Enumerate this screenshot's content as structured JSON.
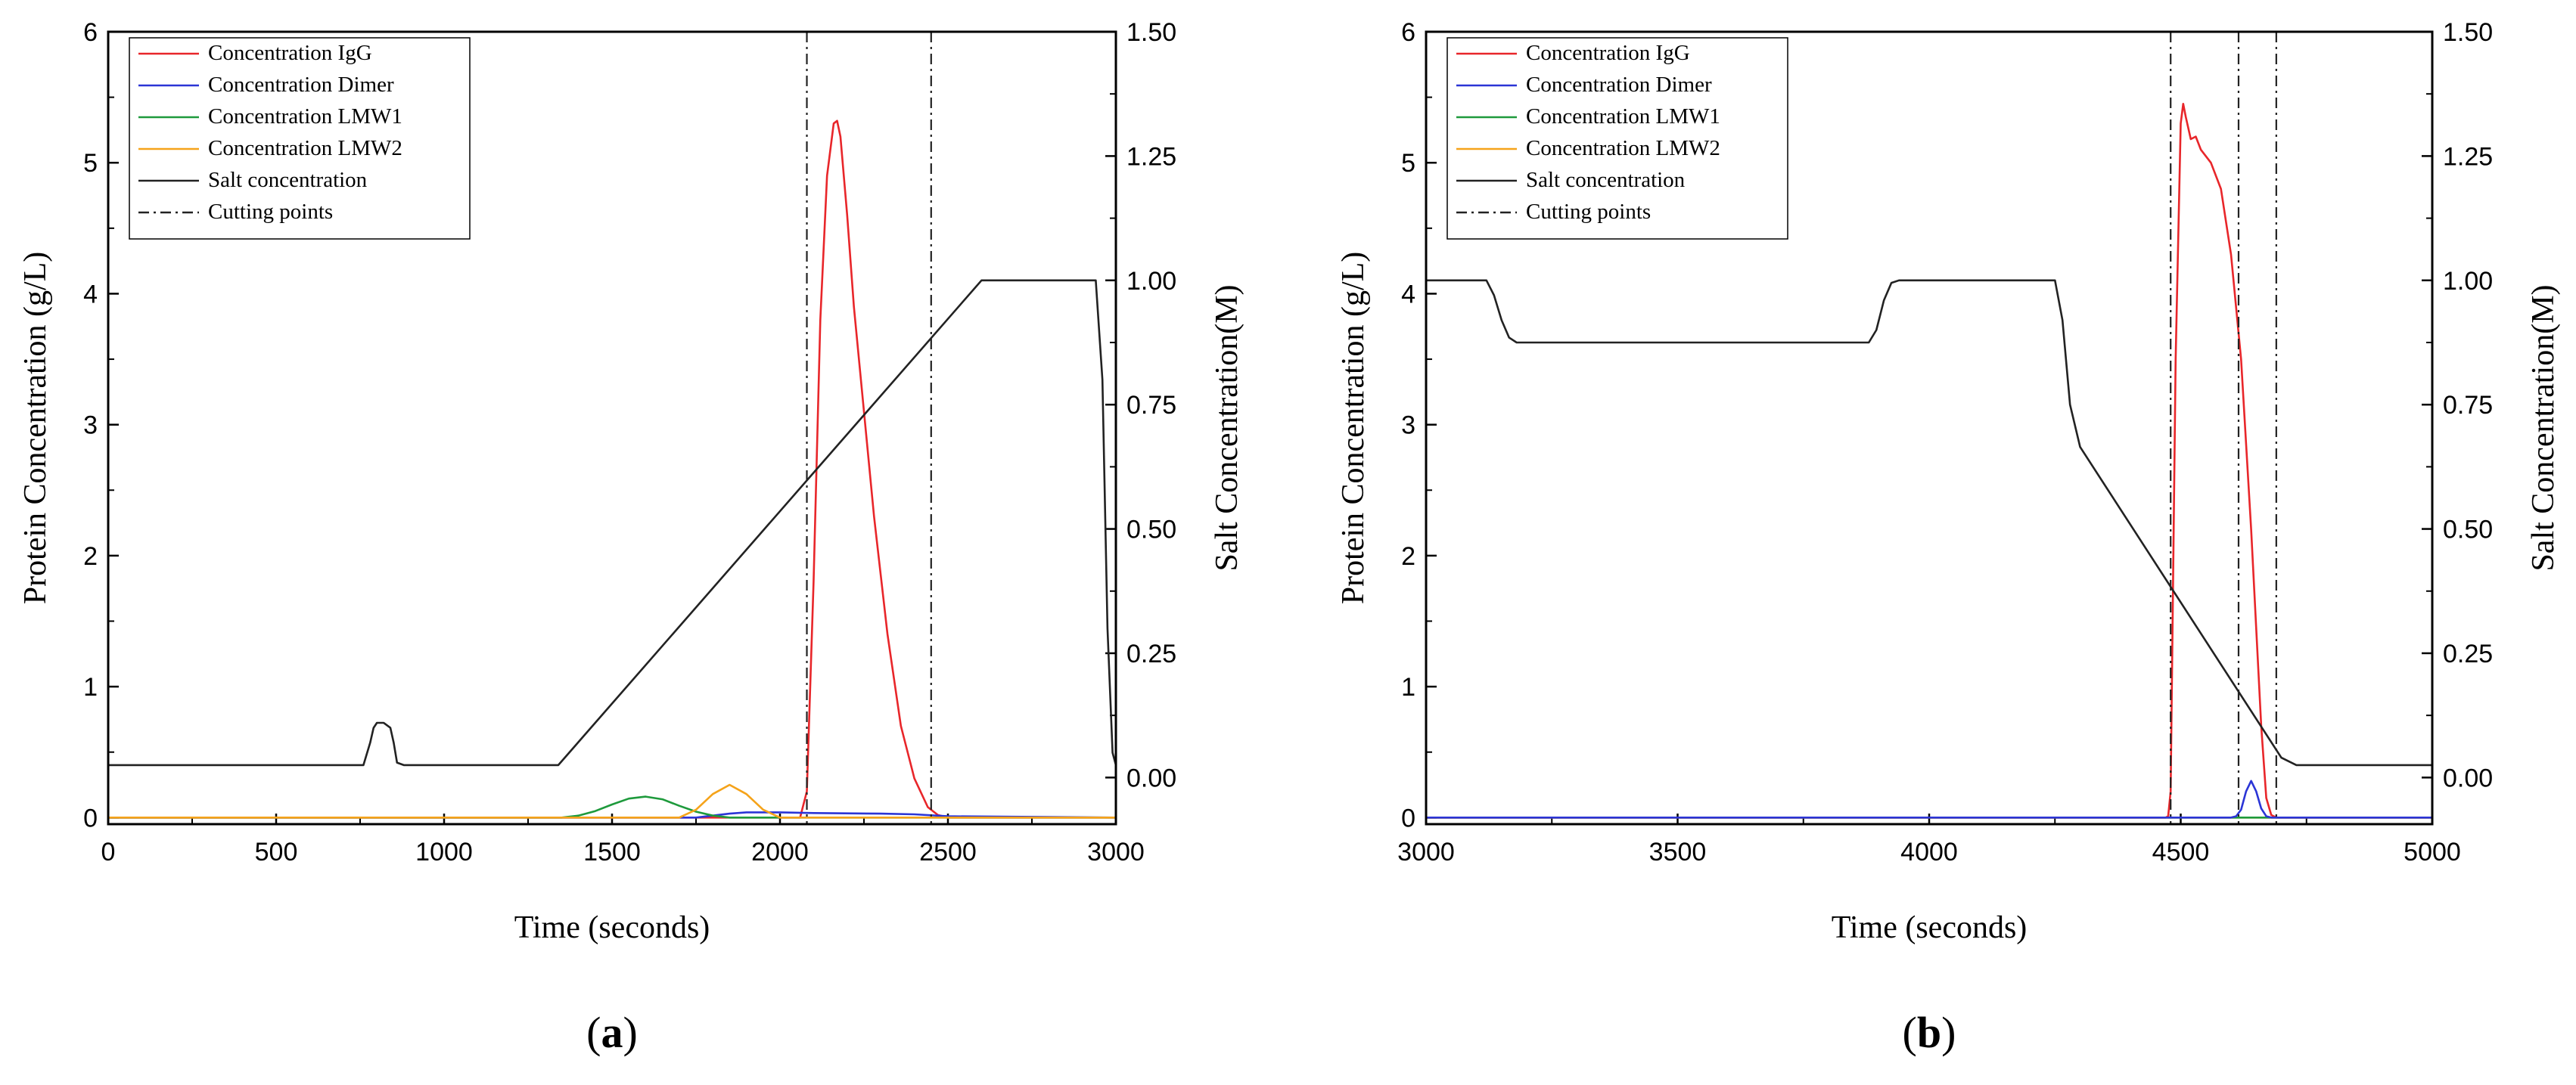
{
  "chart_data": [
    {
      "panel_label": "(a)",
      "type": "line",
      "xlabel": "Time (seconds)",
      "ylabel": "Protein Concentration (g/L)",
      "y2label": "Salt Concentration(M)",
      "xlim": [
        0,
        3000
      ],
      "ylim": [
        -0.05,
        6
      ],
      "y2lim": [
        -0.09375,
        1.5
      ],
      "xticks": [
        0,
        500,
        1000,
        1500,
        2000,
        2500,
        3000
      ],
      "yticks": [
        0,
        1,
        2,
        3,
        4,
        5,
        6
      ],
      "y2ticks": [
        0.0,
        0.25,
        0.5,
        0.75,
        1.0,
        1.25,
        1.5
      ],
      "y2ticklabels": [
        "0.00",
        "0.25",
        "0.50",
        "0.75",
        "1.00",
        "1.25",
        "1.50"
      ],
      "legend_position": "top-left",
      "legend": [
        {
          "label": "Concentration IgG",
          "color": "#e8262a",
          "dash": "solid"
        },
        {
          "label": "Concentration Dimer",
          "color": "#2b35d6",
          "dash": "solid"
        },
        {
          "label": "Concentration LMW1",
          "color": "#1e9a3c",
          "dash": "solid"
        },
        {
          "label": "Concentration LMW2",
          "color": "#f5a31a",
          "dash": "solid"
        },
        {
          "label": "Salt concentration",
          "color": "#222222",
          "dash": "solid"
        },
        {
          "label": "Cutting points",
          "color": "#222222",
          "dash": "dashdot"
        }
      ],
      "series": [
        {
          "name": "Concentration IgG",
          "axis": "left",
          "color": "#e8262a",
          "x": [
            0,
            2060,
            2080,
            2100,
            2120,
            2140,
            2160,
            2170,
            2180,
            2200,
            2220,
            2250,
            2280,
            2320,
            2360,
            2400,
            2440,
            2470,
            2500,
            3000
          ],
          "y": [
            0,
            0,
            0.2,
            1.8,
            3.8,
            4.9,
            5.3,
            5.32,
            5.2,
            4.6,
            3.9,
            3.1,
            2.3,
            1.4,
            0.7,
            0.3,
            0.08,
            0.02,
            0,
            0
          ]
        },
        {
          "name": "Concentration Dimer",
          "axis": "left",
          "color": "#2b35d6",
          "x": [
            0,
            1750,
            1800,
            1850,
            1900,
            2000,
            2100,
            2300,
            2400,
            2500,
            3000
          ],
          "y": [
            0,
            0,
            0.015,
            0.03,
            0.04,
            0.04,
            0.035,
            0.03,
            0.025,
            0.01,
            0
          ]
        },
        {
          "name": "Concentration LMW1",
          "axis": "left",
          "color": "#1e9a3c",
          "x": [
            0,
            1350,
            1400,
            1450,
            1500,
            1550,
            1600,
            1650,
            1700,
            1750,
            1800,
            1850,
            3000
          ],
          "y": [
            0,
            0,
            0.015,
            0.05,
            0.1,
            0.145,
            0.16,
            0.14,
            0.09,
            0.045,
            0.015,
            0,
            0
          ]
        },
        {
          "name": "Concentration LMW2",
          "axis": "left",
          "color": "#f5a31a",
          "x": [
            0,
            1700,
            1750,
            1800,
            1850,
            1900,
            1950,
            2000,
            3000
          ],
          "y": [
            0,
            0,
            0.06,
            0.18,
            0.25,
            0.18,
            0.06,
            0,
            0
          ]
        },
        {
          "name": "Salt concentration",
          "axis": "right",
          "color": "#222222",
          "x": [
            0,
            760,
            780,
            790,
            800,
            820,
            840,
            850,
            860,
            880,
            1340,
            2600,
            2940,
            2960,
            2975,
            2990,
            3000
          ],
          "y": [
            0.025,
            0.025,
            0.07,
            0.1,
            0.11,
            0.11,
            0.1,
            0.07,
            0.03,
            0.025,
            0.025,
            1.0,
            1.0,
            0.8,
            0.3,
            0.05,
            0.025
          ]
        }
      ],
      "cutting_points": [
        2080,
        2450
      ]
    },
    {
      "panel_label": "(b)",
      "type": "line",
      "xlabel": "Time (seconds)",
      "ylabel": "Protein Concentration (g/L)",
      "y2label": "Salt Concentration(M)",
      "xlim": [
        3000,
        5000
      ],
      "ylim": [
        -0.05,
        6
      ],
      "y2lim": [
        -0.09375,
        1.5
      ],
      "xticks": [
        3000,
        3500,
        4000,
        4500,
        5000
      ],
      "yticks": [
        0,
        1,
        2,
        3,
        4,
        5,
        6
      ],
      "y2ticks": [
        0.0,
        0.25,
        0.5,
        0.75,
        1.0,
        1.25,
        1.5
      ],
      "y2ticklabels": [
        "0.00",
        "0.25",
        "0.50",
        "0.75",
        "1.00",
        "1.25",
        "1.50"
      ],
      "legend_position": "top-left",
      "legend": [
        {
          "label": "Concentration IgG",
          "color": "#e8262a",
          "dash": "solid"
        },
        {
          "label": "Concentration Dimer",
          "color": "#2b35d6",
          "dash": "solid"
        },
        {
          "label": "Concentration LMW1",
          "color": "#1e9a3c",
          "dash": "solid"
        },
        {
          "label": "Concentration LMW2",
          "color": "#f5a31a",
          "dash": "solid"
        },
        {
          "label": "Salt concentration",
          "color": "#222222",
          "dash": "solid"
        },
        {
          "label": "Cutting points",
          "color": "#222222",
          "dash": "dashdot"
        }
      ],
      "series": [
        {
          "name": "Concentration LMW2",
          "axis": "left",
          "color": "#f5a31a",
          "x": [
            3000,
            5000
          ],
          "y": [
            0,
            0
          ]
        },
        {
          "name": "Concentration LMW1",
          "axis": "left",
          "color": "#1e9a3c",
          "x": [
            3000,
            5000
          ],
          "y": [
            0,
            0
          ]
        },
        {
          "name": "Concentration IgG",
          "axis": "left",
          "color": "#e8262a",
          "x": [
            3000,
            4470,
            4475,
            4480,
            4490,
            4500,
            4505,
            4510,
            4520,
            4530,
            4540,
            4560,
            4580,
            4600,
            4620,
            4640,
            4660,
            4670,
            4680,
            4690,
            4700,
            5000
          ],
          "y": [
            0,
            0,
            0.01,
            0.2,
            3.5,
            5.3,
            5.45,
            5.35,
            5.18,
            5.2,
            5.1,
            5.0,
            4.8,
            4.3,
            3.5,
            2.2,
            0.7,
            0.15,
            0.02,
            0,
            0,
            0
          ]
        },
        {
          "name": "Concentration Dimer",
          "axis": "left",
          "color": "#2b35d6",
          "x": [
            3000,
            4600,
            4610,
            4620,
            4630,
            4640,
            4650,
            4660,
            4670,
            4680,
            5000
          ],
          "y": [
            0,
            0,
            0.01,
            0.06,
            0.2,
            0.28,
            0.2,
            0.07,
            0.01,
            0,
            0
          ]
        },
        {
          "name": "Salt concentration",
          "axis": "right",
          "color": "#222222",
          "x": [
            3000,
            3120,
            3135,
            3150,
            3165,
            3180,
            3880,
            3895,
            3910,
            3925,
            3940,
            4250,
            4265,
            4280,
            4300,
            4700,
            4730,
            5000
          ],
          "y": [
            1.0,
            1.0,
            0.97,
            0.92,
            0.885,
            0.875,
            0.875,
            0.9,
            0.96,
            0.995,
            1.0,
            1.0,
            0.92,
            0.75,
            0.665,
            0.04,
            0.025,
            0.025
          ]
        }
      ],
      "cutting_points": [
        4480,
        4615,
        4690
      ]
    }
  ]
}
